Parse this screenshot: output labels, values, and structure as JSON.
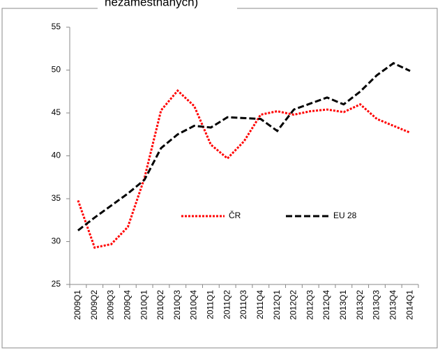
{
  "chart_data": {
    "type": "line",
    "title": "nezaměstnaných)",
    "categories": [
      "2009Q1",
      "2009Q2",
      "2009Q3",
      "2009Q4",
      "2010Q1",
      "2010Q2",
      "2010Q3",
      "2010Q4",
      "2011Q1",
      "2011Q2",
      "2011Q3",
      "2011Q4",
      "2012Q1",
      "2012Q2",
      "2012Q3",
      "2012Q4",
      "2013Q1",
      "2013Q2",
      "2013Q3",
      "2013Q4",
      "2014Q1"
    ],
    "series": [
      {
        "name": "ČR",
        "color": "#ff0000",
        "values": [
          34.8,
          29.3,
          29.7,
          31.7,
          37.4,
          45.3,
          47.6,
          45.8,
          41.3,
          39.7,
          41.7,
          44.8,
          45.2,
          44.8,
          45.2,
          45.4,
          45.1,
          46.0,
          44.3,
          43.5,
          42.7
        ]
      },
      {
        "name": "EU 28",
        "color": "#000000",
        "values": [
          31.3,
          32.8,
          34.2,
          35.6,
          37.2,
          40.9,
          42.5,
          43.5,
          43.3,
          44.5,
          44.4,
          44.3,
          42.9,
          45.4,
          46.1,
          46.8,
          46.0,
          47.5,
          49.4,
          50.8,
          49.9
        ]
      }
    ],
    "ylim": [
      25,
      55
    ],
    "yticks": [
      25,
      30,
      35,
      40,
      45,
      50,
      55
    ],
    "legend": "center"
  }
}
